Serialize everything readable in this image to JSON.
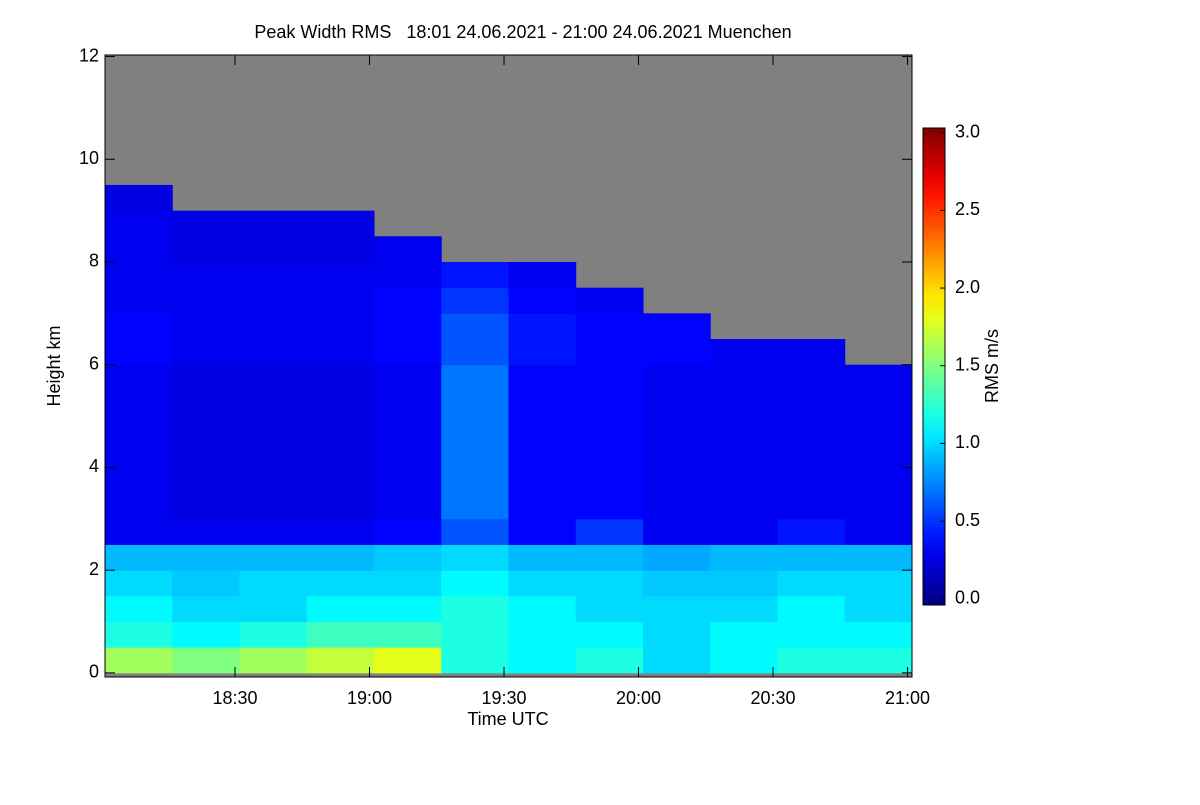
{
  "chart_data": {
    "type": "heatmap",
    "title": "Peak Width RMS   18:01 24.06.2021 - 21:00 24.06.2021 Muenchen",
    "x_label": "Time UTC",
    "y_label": "Height km",
    "colorbar_label": "RMS m/s",
    "colormap": "jet",
    "nodata_color": "#808080",
    "x": [
      1081,
      1096,
      1111,
      1126,
      1141,
      1156,
      1171,
      1186,
      1201,
      1216,
      1231,
      1246
    ],
    "y": [
      0,
      0.5,
      1,
      1.5,
      2,
      2.5,
      3,
      3.5,
      4,
      4.5,
      5,
      5.5,
      6,
      6.5,
      7,
      7.5,
      8,
      8.5,
      9
    ],
    "z": [
      [
        1.6,
        1.5,
        1.6,
        1.7,
        1.8,
        1.2,
        1.1,
        1.2,
        1.0,
        1.1,
        1.2,
        1.2
      ],
      [
        1.2,
        1.1,
        1.2,
        1.3,
        1.3,
        1.2,
        1.1,
        1.1,
        1.0,
        1.1,
        1.1,
        1.1
      ],
      [
        1.1,
        1.0,
        1.0,
        1.1,
        1.1,
        1.2,
        1.1,
        1.0,
        1.0,
        1.0,
        1.1,
        1.0
      ],
      [
        1.0,
        0.95,
        1.0,
        1.0,
        1.0,
        1.1,
        1.0,
        1.0,
        0.95,
        0.95,
        1.0,
        1.0
      ],
      [
        0.9,
        0.9,
        0.9,
        0.9,
        0.95,
        1.0,
        0.9,
        0.9,
        0.85,
        0.9,
        0.9,
        0.9
      ],
      [
        0.3,
        0.3,
        0.3,
        0.3,
        0.35,
        0.6,
        0.35,
        0.5,
        0.3,
        0.3,
        0.4,
        0.3
      ],
      [
        0.3,
        0.25,
        0.25,
        0.25,
        0.3,
        0.7,
        0.35,
        0.35,
        0.3,
        0.3,
        0.3,
        0.3
      ],
      [
        0.3,
        0.25,
        0.25,
        0.25,
        0.3,
        0.7,
        0.35,
        0.35,
        0.3,
        0.3,
        0.3,
        0.3
      ],
      [
        0.3,
        0.25,
        0.25,
        0.25,
        0.3,
        0.7,
        0.35,
        0.35,
        0.3,
        0.3,
        0.3,
        0.3
      ],
      [
        0.3,
        0.25,
        0.25,
        0.25,
        0.3,
        0.7,
        0.35,
        0.35,
        0.3,
        0.3,
        0.3,
        0.3
      ],
      [
        0.3,
        0.25,
        0.25,
        0.25,
        0.3,
        0.7,
        0.35,
        0.35,
        0.3,
        0.3,
        0.3,
        0.3
      ],
      [
        0.3,
        0.25,
        0.25,
        0.25,
        0.3,
        0.7,
        0.35,
        0.35,
        0.3,
        0.3,
        0.3,
        0.3
      ],
      [
        0.35,
        0.3,
        0.3,
        0.3,
        0.35,
        0.6,
        0.4,
        0.35,
        0.35,
        0.3,
        0.3,
        null
      ],
      [
        0.35,
        0.3,
        0.3,
        0.3,
        0.35,
        0.6,
        0.4,
        0.35,
        0.35,
        null,
        null,
        null
      ],
      [
        0.3,
        0.3,
        0.3,
        0.3,
        0.35,
        0.5,
        0.35,
        0.3,
        null,
        null,
        null,
        null
      ],
      [
        0.3,
        0.3,
        0.3,
        0.3,
        0.3,
        0.4,
        0.3,
        null,
        null,
        null,
        null,
        null
      ],
      [
        0.3,
        0.25,
        0.25,
        0.25,
        0.3,
        null,
        null,
        null,
        null,
        null,
        null,
        null
      ],
      [
        0.3,
        0.25,
        0.25,
        0.25,
        null,
        null,
        null,
        null,
        null,
        null,
        null,
        null
      ],
      [
        0.25,
        null,
        null,
        null,
        null,
        null,
        null,
        null,
        null,
        null,
        null,
        null
      ]
    ],
    "xlim": [
      1081,
      1261
    ],
    "ylim": [
      -0.08,
      12.03
    ],
    "xticks": [
      {
        "value": 1110,
        "label": "18:30"
      },
      {
        "value": 1140,
        "label": "19:00"
      },
      {
        "value": 1170,
        "label": "19:30"
      },
      {
        "value": 1200,
        "label": "20:00"
      },
      {
        "value": 1230,
        "label": "20:30"
      },
      {
        "value": 1260,
        "label": "21:00"
      }
    ],
    "yticks": [
      0,
      2,
      4,
      6,
      8,
      10,
      12
    ],
    "clim": [
      -0.04,
      3.03
    ],
    "cticks": [
      {
        "value": 0,
        "label": "0.0"
      },
      0.5,
      {
        "value": 1,
        "label": "1.0"
      },
      1.5,
      {
        "value": 2,
        "label": "2.0"
      },
      2.5,
      {
        "value": 3,
        "label": "3.0"
      }
    ]
  }
}
